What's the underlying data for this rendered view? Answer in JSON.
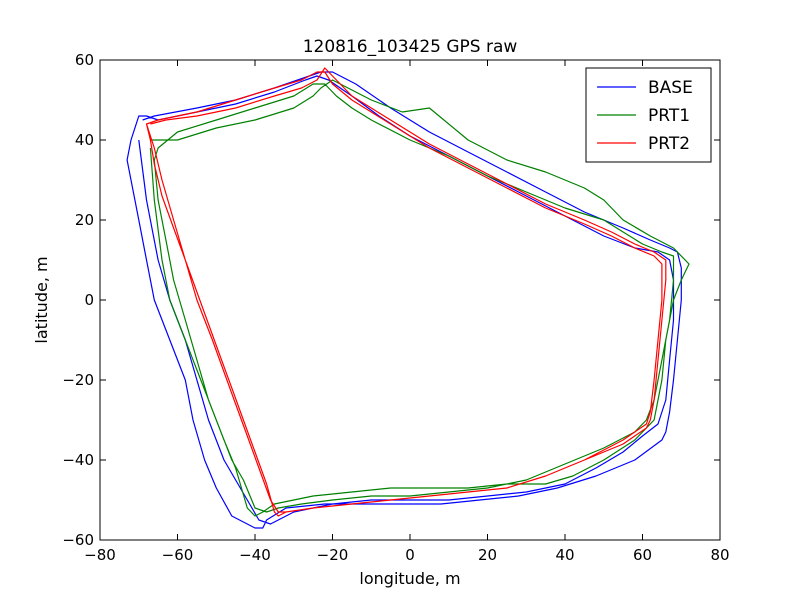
{
  "chart_data": {
    "type": "line",
    "title": "120816_103425 GPS raw",
    "xlabel": "longitude, m",
    "ylabel": "latitude, m",
    "xlim": [
      -80,
      80
    ],
    "ylim": [
      -60,
      60
    ],
    "xticks": [
      -80,
      -60,
      -40,
      -20,
      0,
      20,
      40,
      60,
      80
    ],
    "yticks": [
      -60,
      -40,
      -20,
      0,
      20,
      40,
      60
    ],
    "xtick_labels": [
      "−80",
      "−60",
      "−40",
      "−20",
      "0",
      "20",
      "40",
      "60",
      "80"
    ],
    "ytick_labels": [
      "−60",
      "−40",
      "−20",
      "0",
      "20",
      "40",
      "60"
    ],
    "grid": false,
    "legend_position": "top-right",
    "series": [
      {
        "name": "BASE",
        "color": "#0000ff",
        "x": [
          -69,
          -66,
          -55,
          -45,
          -35,
          -26,
          -23,
          -20,
          -14,
          -5,
          5,
          15,
          25,
          35,
          45,
          55,
          62,
          67,
          69,
          70,
          70,
          69,
          68,
          67,
          66,
          65,
          58,
          48,
          38,
          28,
          18,
          8,
          -2,
          -12,
          -22,
          -32,
          -37,
          -38,
          -40,
          -46,
          -50,
          -53,
          -56,
          -58,
          -62,
          -66,
          -68,
          -70,
          -72,
          -73,
          -72,
          -70,
          -68,
          -65,
          -55,
          -45,
          -35,
          -27,
          -24,
          -21,
          -15,
          -8,
          0,
          10,
          20,
          30,
          40,
          50,
          58,
          64,
          67,
          68,
          68,
          67,
          66,
          64,
          60,
          55,
          48,
          40,
          30,
          20,
          10,
          0,
          -10,
          -20,
          -30,
          -36,
          -39,
          -42,
          -48,
          -52,
          -55,
          -58,
          -62,
          -65,
          -68,
          -70
        ],
        "y": [
          45,
          46,
          48,
          50,
          53,
          56,
          57,
          57,
          54,
          48,
          42,
          37,
          32,
          27,
          22,
          18,
          15,
          13,
          12,
          8,
          0,
          -10,
          -20,
          -28,
          -33,
          -35,
          -40,
          -44,
          -47,
          -49,
          -50,
          -51,
          -51,
          -51,
          -51,
          -52,
          -55,
          -57,
          -57,
          -54,
          -47,
          -40,
          -30,
          -20,
          -10,
          0,
          10,
          20,
          30,
          35,
          40,
          46,
          46,
          45,
          47,
          49,
          52,
          55,
          56,
          55,
          51,
          46,
          41,
          36,
          31,
          26,
          21,
          16,
          13,
          12,
          10,
          5,
          -5,
          -15,
          -25,
          -31,
          -34,
          -38,
          -42,
          -46,
          -48,
          -49,
          -50,
          -50,
          -50,
          -51,
          -53,
          -56,
          -55,
          -50,
          -40,
          -30,
          -20,
          -10,
          0,
          10,
          25,
          40
        ]
      },
      {
        "name": "PRT1",
        "color": "#008000",
        "x": [
          -67,
          -60,
          -50,
          -40,
          -30,
          -25,
          -23,
          -20,
          -16,
          -10,
          -2,
          5,
          15,
          25,
          35,
          45,
          50,
          55,
          62,
          68,
          72,
          70,
          68,
          66,
          65,
          63,
          58,
          50,
          42,
          35,
          25,
          15,
          5,
          -5,
          -15,
          -25,
          -30,
          -35,
          -38,
          -40,
          -42,
          -45,
          -48,
          -52,
          -55,
          -58,
          -61,
          -63,
          -65,
          -66,
          -65,
          -60,
          -50,
          -40,
          -30,
          -25,
          -22,
          -19,
          -15,
          -10,
          0,
          10,
          20,
          30,
          40,
          50,
          55,
          60,
          65,
          68,
          68,
          67,
          65,
          63,
          61,
          58,
          50,
          40,
          30,
          20,
          10,
          0,
          -10,
          -20,
          -28,
          -34,
          -37,
          -40,
          -43,
          -46,
          -50,
          -54,
          -58,
          -62,
          -64,
          -66,
          -67
        ],
        "y": [
          40,
          40,
          43,
          45,
          48,
          51,
          53,
          55,
          53,
          50,
          47,
          48,
          40,
          35,
          32,
          28,
          25,
          20,
          16,
          13,
          9,
          5,
          0,
          -10,
          -20,
          -30,
          -35,
          -40,
          -44,
          -46,
          -46,
          -47,
          -47,
          -47,
          -48,
          -49,
          -50,
          -51,
          -53,
          -54,
          -52,
          -42,
          -35,
          -25,
          -15,
          -5,
          5,
          15,
          25,
          35,
          38,
          42,
          45,
          48,
          51,
          54,
          54,
          51,
          48,
          45,
          40,
          36,
          31,
          27,
          23,
          20,
          17,
          14,
          12,
          11,
          5,
          -5,
          -15,
          -25,
          -30,
          -33,
          -37,
          -41,
          -45,
          -47,
          -48,
          -49,
          -49,
          -50,
          -51,
          -52,
          -53,
          -52,
          -45,
          -40,
          -30,
          -20,
          -10,
          0,
          10,
          25,
          38
        ]
      },
      {
        "name": "PRT2",
        "color": "#ff0000",
        "x": [
          -67,
          -63,
          -55,
          -45,
          -35,
          -28,
          -24,
          -22,
          -20,
          -15,
          -5,
          5,
          15,
          25,
          35,
          45,
          52,
          58,
          63,
          66,
          66,
          65,
          64,
          63,
          62,
          61,
          55,
          45,
          35,
          25,
          15,
          5,
          -5,
          -15,
          -25,
          -32,
          -34,
          -35,
          -37,
          -40,
          -43,
          -46,
          -49,
          -52,
          -55,
          -58,
          -61,
          -64,
          -66,
          -67,
          -68,
          -65,
          -55,
          -45,
          -35,
          -28,
          -24,
          -22,
          -20,
          -15,
          -5,
          5,
          15,
          25,
          35,
          45,
          52,
          58,
          63,
          65,
          65,
          64,
          63,
          62,
          61,
          55,
          45,
          35,
          25,
          15,
          5,
          -5,
          -15,
          -25,
          -32,
          -34,
          -36,
          -39,
          -42,
          -45,
          -48,
          -51,
          -55,
          -58,
          -61,
          -64,
          -66,
          -68
        ],
        "y": [
          44,
          45,
          46,
          48,
          51,
          53,
          55,
          58,
          56,
          51,
          45,
          39,
          34,
          29,
          24,
          20,
          17,
          14,
          12,
          10,
          5,
          -5,
          -15,
          -25,
          -30,
          -32,
          -36,
          -40,
          -44,
          -47,
          -48,
          -49,
          -50,
          -51,
          -52,
          -53,
          -54,
          -53,
          -46,
          -38,
          -30,
          -22,
          -14,
          -6,
          2,
          10,
          18,
          26,
          34,
          40,
          44,
          45,
          47,
          50,
          53,
          55,
          57,
          57,
          54,
          50,
          44,
          38,
          33,
          28,
          23,
          19,
          16,
          13,
          11,
          9,
          0,
          -10,
          -20,
          -28,
          -31,
          -35,
          -40,
          -44,
          -47,
          -48,
          -49,
          -50,
          -51,
          -52,
          -53,
          -53,
          -50,
          -42,
          -34,
          -26,
          -18,
          -10,
          0,
          10,
          20,
          30,
          38,
          44
        ]
      }
    ]
  }
}
